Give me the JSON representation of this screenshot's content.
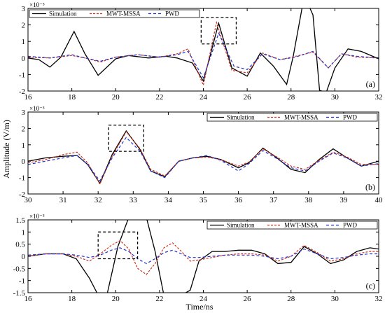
{
  "figure": {
    "ylabel": "Amplitude (V/m)",
    "xlabel": "Time/ns"
  },
  "chart_data": [
    {
      "type": "line",
      "panel_label": "(a)",
      "exponent": "×10⁻³",
      "xlim": [
        16,
        32
      ],
      "ylim": [
        -2,
        3
      ],
      "xticks": [
        "16",
        "18",
        "20",
        "22",
        "24",
        "26",
        "28",
        "30",
        "32"
      ],
      "yticks": [
        "-2",
        "-1",
        "0",
        "1",
        "2",
        "3"
      ],
      "legend_position": "top-left",
      "highlight_box": {
        "x": [
          23.9,
          25.5
        ],
        "y": [
          0.85,
          2.45
        ]
      },
      "series": [
        {
          "name": "Simulation",
          "color": "#000000",
          "dash": "",
          "x": [
            16,
            16.5,
            17,
            17.5,
            18.1,
            18.6,
            19.2,
            20,
            20.6,
            21.5,
            22.3,
            22.8,
            23.5,
            24,
            24.7,
            25.3,
            26,
            26.6,
            27.2,
            27.8,
            28.1,
            28.5,
            28.8,
            29.0,
            29.3,
            29.6,
            30.0,
            30.6,
            31.2,
            32
          ],
          "y": [
            0.0,
            -0.1,
            -0.55,
            0.05,
            1.6,
            0.25,
            -1.05,
            -0.05,
            0.15,
            0.0,
            0.1,
            0.0,
            -0.3,
            -1.4,
            2.1,
            -0.6,
            -1.1,
            0.3,
            -0.5,
            -1.6,
            0.1,
            3.0,
            3.2,
            2.6,
            -1.95,
            -2.1,
            -0.6,
            0.55,
            0.4,
            -0.05
          ]
        },
        {
          "name": "MWT-MSSA",
          "color": "#cc3322",
          "dash": "3,2",
          "x": [
            16,
            17,
            18,
            18.6,
            19.3,
            20,
            21,
            22,
            22.8,
            23.3,
            24,
            24.6,
            25.3,
            26,
            26.7,
            27.5,
            28.2,
            29,
            29.7,
            30.3,
            31,
            32
          ],
          "y": [
            0.05,
            0.0,
            0.15,
            0.0,
            -0.25,
            0.05,
            0.2,
            0.05,
            0.25,
            0.55,
            -1.65,
            2.15,
            -0.75,
            -0.9,
            0.3,
            -0.1,
            0.1,
            0.35,
            -0.6,
            0.25,
            0.05,
            0.0
          ]
        },
        {
          "name": "PWD",
          "color": "#2233cc",
          "dash": "4,3",
          "x": [
            16,
            17,
            18,
            18.6,
            19.3,
            20,
            21,
            22,
            22.8,
            23.3,
            24,
            24.7,
            25.4,
            26,
            26.7,
            27.5,
            28.2,
            29,
            29.7,
            30.3,
            31,
            32
          ],
          "y": [
            0.1,
            0.0,
            0.2,
            0.0,
            -0.2,
            0.05,
            0.2,
            0.05,
            0.2,
            0.4,
            -1.2,
            1.5,
            -0.5,
            -0.7,
            0.25,
            -0.1,
            0.05,
            0.4,
            -0.6,
            0.25,
            0.1,
            0.0
          ]
        }
      ]
    },
    {
      "type": "line",
      "panel_label": "(b)",
      "exponent": "×10⁻³",
      "xlim": [
        30,
        40
      ],
      "ylim": [
        -2,
        3
      ],
      "xticks": [
        "30",
        "31",
        "32",
        "33",
        "34",
        "35",
        "36",
        "37",
        "38",
        "39",
        "40"
      ],
      "yticks": [
        "-2",
        "-1",
        "0",
        "1",
        "2",
        "3"
      ],
      "legend_position": "top-right",
      "highlight_box": {
        "x": [
          32.3,
          33.3
        ],
        "y": [
          0.6,
          2.2
        ]
      },
      "series": [
        {
          "name": "Simulation",
          "color": "#000000",
          "dash": "",
          "x": [
            30,
            30.5,
            31,
            31.4,
            31.7,
            32.05,
            32.4,
            32.8,
            33.2,
            33.5,
            33.9,
            34.3,
            34.7,
            35.1,
            35.5,
            36.0,
            36.3,
            36.7,
            37.1,
            37.5,
            37.9,
            38.3,
            38.7,
            39.1,
            39.5,
            40
          ],
          "y": [
            0.0,
            0.2,
            0.3,
            0.35,
            -0.2,
            -1.35,
            0.4,
            1.85,
            0.7,
            -0.6,
            -0.95,
            0.0,
            0.2,
            0.3,
            0.1,
            -0.4,
            -0.1,
            0.8,
            0.2,
            -0.5,
            -0.7,
            0.1,
            0.75,
            0.2,
            -0.3,
            0.0
          ]
        },
        {
          "name": "MWT-MSSA",
          "color": "#cc3322",
          "dash": "3,2",
          "x": [
            30,
            30.5,
            31,
            31.4,
            31.7,
            32.05,
            32.4,
            32.8,
            33.2,
            33.5,
            33.9,
            34.3,
            34.7,
            35.1,
            35.5,
            36.0,
            36.3,
            36.7,
            37.1,
            37.5,
            37.9,
            38.3,
            38.7,
            39.1,
            39.5,
            40
          ],
          "y": [
            -0.1,
            0.1,
            0.4,
            0.55,
            -0.1,
            -1.4,
            0.3,
            1.8,
            0.75,
            -0.5,
            -0.9,
            0.0,
            0.2,
            0.25,
            0.1,
            -0.3,
            -0.05,
            0.75,
            0.25,
            -0.3,
            -0.5,
            0.05,
            0.55,
            0.25,
            -0.2,
            -0.2
          ]
        },
        {
          "name": "PWD",
          "color": "#2233cc",
          "dash": "4,3",
          "x": [
            30,
            30.5,
            31,
            31.4,
            31.7,
            32.05,
            32.4,
            32.8,
            33.2,
            33.5,
            33.9,
            34.3,
            34.7,
            35.1,
            35.5,
            36.0,
            36.3,
            36.7,
            37.1,
            37.5,
            37.9,
            38.3,
            38.7,
            39.1,
            39.5,
            40
          ],
          "y": [
            -0.2,
            0.0,
            0.2,
            0.35,
            -0.2,
            -1.2,
            0.2,
            1.45,
            0.6,
            -0.6,
            -1.0,
            0.0,
            0.2,
            0.35,
            0.05,
            -0.6,
            -0.15,
            0.65,
            0.15,
            -0.4,
            -0.6,
            0.0,
            0.5,
            0.2,
            -0.3,
            -0.15
          ]
        }
      ]
    },
    {
      "type": "line",
      "panel_label": "(c)",
      "exponent": "×10⁻³",
      "xlim": [
        16,
        32
      ],
      "ylim": [
        -1.5,
        1.5
      ],
      "xticks": [
        "16",
        "18",
        "20",
        "22",
        "24",
        "26",
        "28",
        "30",
        "32"
      ],
      "yticks": [
        "-1.5",
        "-1",
        "-0.5",
        "0",
        "0.5",
        "1",
        "1.5"
      ],
      "legend_position": "top-right",
      "highlight_box": {
        "x": [
          19.2,
          21.0
        ],
        "y": [
          -0.1,
          1.0
        ]
      },
      "series": [
        {
          "name": "Simulation",
          "color": "#000000",
          "dash": "",
          "x": [
            16,
            16.8,
            17.6,
            18.2,
            18.8,
            19.2,
            19.6,
            20.1,
            20.6,
            21.0,
            21.4,
            21.8,
            22.2,
            22.6,
            23.0,
            23.4,
            23.8,
            24.4,
            25.0,
            25.6,
            26.2,
            26.8,
            27.4,
            28.0,
            28.6,
            29.2,
            29.8,
            30.4,
            31.0,
            31.6,
            32
          ],
          "y": [
            0.0,
            0.1,
            0.1,
            -0.1,
            -0.9,
            -1.6,
            -1.6,
            0.4,
            1.6,
            1.7,
            1.6,
            0.2,
            -1.6,
            -1.6,
            -1.6,
            -1.4,
            -0.2,
            0.2,
            0.2,
            0.25,
            0.25,
            0.1,
            -0.3,
            -0.25,
            0.4,
            0.1,
            -0.3,
            -0.15,
            0.2,
            0.35,
            0.3
          ]
        },
        {
          "name": "MWT-MSSA",
          "color": "#cc3322",
          "dash": "3,2",
          "x": [
            16,
            16.8,
            17.6,
            18.2,
            18.8,
            19.3,
            19.8,
            20.2,
            20.6,
            21.0,
            21.4,
            21.8,
            22.2,
            22.6,
            23.0,
            23.4,
            23.8,
            24.4,
            25.0,
            25.6,
            26.2,
            26.8,
            27.4,
            28.0,
            28.6,
            29.2,
            29.8,
            30.4,
            31.0,
            31.6,
            32
          ],
          "y": [
            0.0,
            0.1,
            0.1,
            0.0,
            -0.2,
            0.1,
            0.45,
            0.65,
            0.3,
            -0.5,
            -0.75,
            -0.3,
            0.35,
            0.55,
            0.2,
            -0.2,
            -0.15,
            -0.05,
            0.05,
            0.1,
            0.1,
            0.05,
            -0.2,
            0.0,
            0.45,
            0.15,
            -0.2,
            -0.1,
            0.1,
            0.2,
            0.2
          ]
        },
        {
          "name": "PWD",
          "color": "#2233cc",
          "dash": "4,3",
          "x": [
            16,
            16.8,
            17.6,
            18.2,
            18.8,
            19.3,
            19.8,
            20.2,
            20.6,
            21.0,
            21.4,
            21.8,
            22.2,
            22.6,
            23.0,
            23.4,
            23.8,
            24.4,
            25.0,
            25.6,
            26.2,
            26.8,
            27.4,
            28.0,
            28.6,
            29.2,
            29.8,
            30.4,
            31.0,
            31.6,
            32
          ],
          "y": [
            0.05,
            0.1,
            0.1,
            0.05,
            -0.05,
            0.05,
            0.25,
            0.35,
            0.2,
            -0.1,
            -0.3,
            -0.1,
            0.15,
            0.25,
            0.1,
            -0.05,
            -0.05,
            0.0,
            0.05,
            0.05,
            0.05,
            0.0,
            -0.1,
            0.0,
            0.3,
            0.1,
            -0.1,
            -0.05,
            0.05,
            0.1,
            0.1
          ]
        }
      ]
    }
  ]
}
